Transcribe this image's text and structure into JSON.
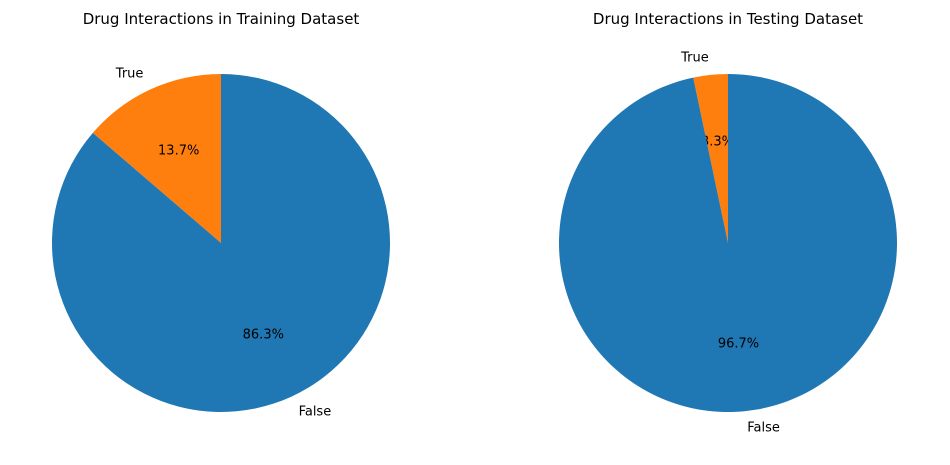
{
  "chart_data": [
    {
      "type": "pie",
      "title": "Drug Interactions in Training Dataset",
      "categories": [
        "True",
        "False"
      ],
      "values": [
        13.7,
        86.3
      ],
      "value_labels": [
        "13.7%",
        "86.3%"
      ],
      "colors": [
        "#ff7f0e",
        "#1f77b4"
      ],
      "start_angle_deg": 90,
      "direction": "counterclockwise",
      "legend": "none"
    },
    {
      "type": "pie",
      "title": "Drug Interactions in Testing Dataset",
      "categories": [
        "True",
        "False"
      ],
      "values": [
        3.3,
        96.7
      ],
      "value_labels": [
        "3.3%",
        "96.7%"
      ],
      "colors": [
        "#ff7f0e",
        "#1f77b4"
      ],
      "start_angle_deg": 90,
      "direction": "counterclockwise",
      "legend": "none"
    }
  ]
}
